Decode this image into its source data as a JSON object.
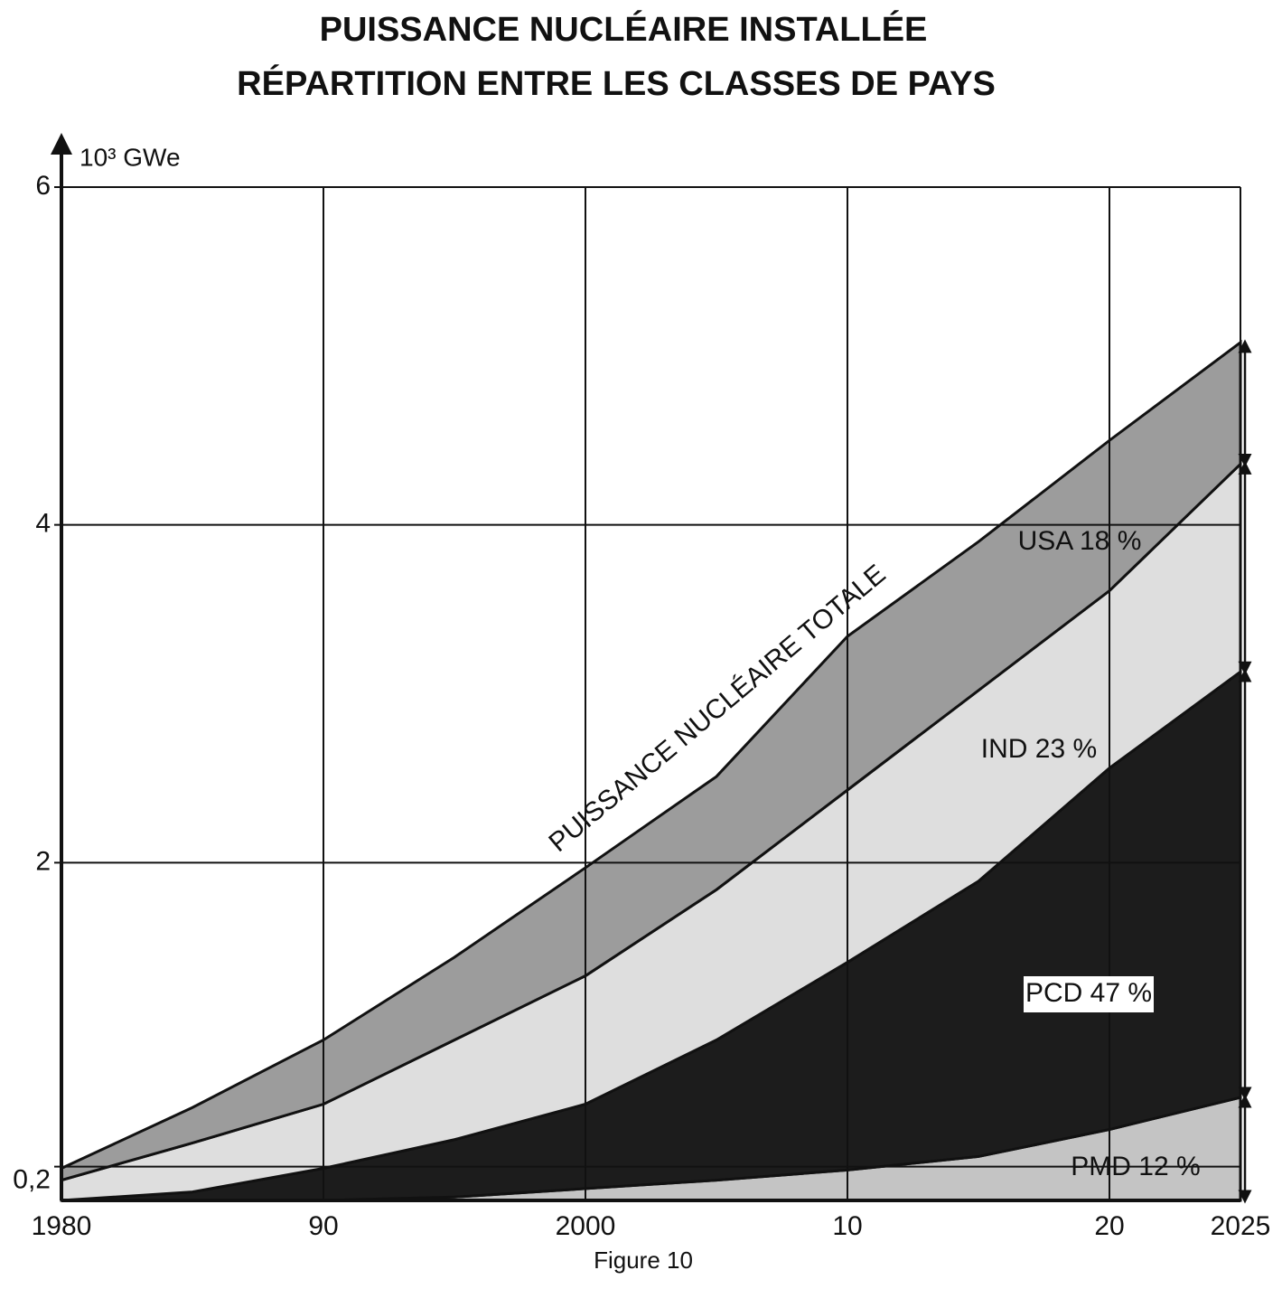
{
  "chart_data": {
    "type": "stacked-area",
    "title": "PUISSANCE NUCLÉAIRE INSTALLÉE",
    "subtitle": "RÉPARTITION ENTRE LES CLASSES DE PAYS",
    "y_label": "10³ GWe",
    "caption": "Figure 10",
    "annotation": "PUISSANCE NUCLÉAIRE TOTALE",
    "x": [
      1980,
      1985,
      1990,
      1995,
      2000,
      2005,
      2010,
      2015,
      2020,
      2025
    ],
    "xlim": [
      1980,
      2025
    ],
    "xticks": [
      1980,
      {
        "value": 1990,
        "label": "90"
      },
      2000,
      {
        "value": 2010,
        "label": "10"
      },
      {
        "value": 2020,
        "label": "20"
      },
      2025
    ],
    "ylim": [
      0,
      6
    ],
    "yticks": [
      {
        "value": 0.2,
        "label": "0,2"
      },
      2,
      4,
      6
    ],
    "grid": true,
    "series": [
      {
        "name": "PMD 12 %",
        "color": "#c4c4c4",
        "values": [
          0,
          0,
          0,
          0.02,
          0.07,
          0.12,
          0.18,
          0.26,
          0.42,
          0.61
        ]
      },
      {
        "name": "PCD 47 %",
        "color": "#1c1c1c",
        "values": [
          0,
          0.05,
          0.19,
          0.34,
          0.5,
          0.83,
          1.23,
          1.63,
          2.14,
          2.52
        ]
      },
      {
        "name": "IND 23 %",
        "color": "#dedede",
        "values": [
          0.12,
          0.29,
          0.38,
          0.59,
          0.76,
          0.89,
          1.02,
          1.13,
          1.05,
          1.23
        ]
      },
      {
        "name": "USA 18 %",
        "color": "#9c9c9c",
        "values": [
          0.07,
          0.21,
          0.38,
          0.49,
          0.64,
          0.67,
          0.91,
          0.88,
          0.89,
          0.72
        ]
      }
    ]
  }
}
